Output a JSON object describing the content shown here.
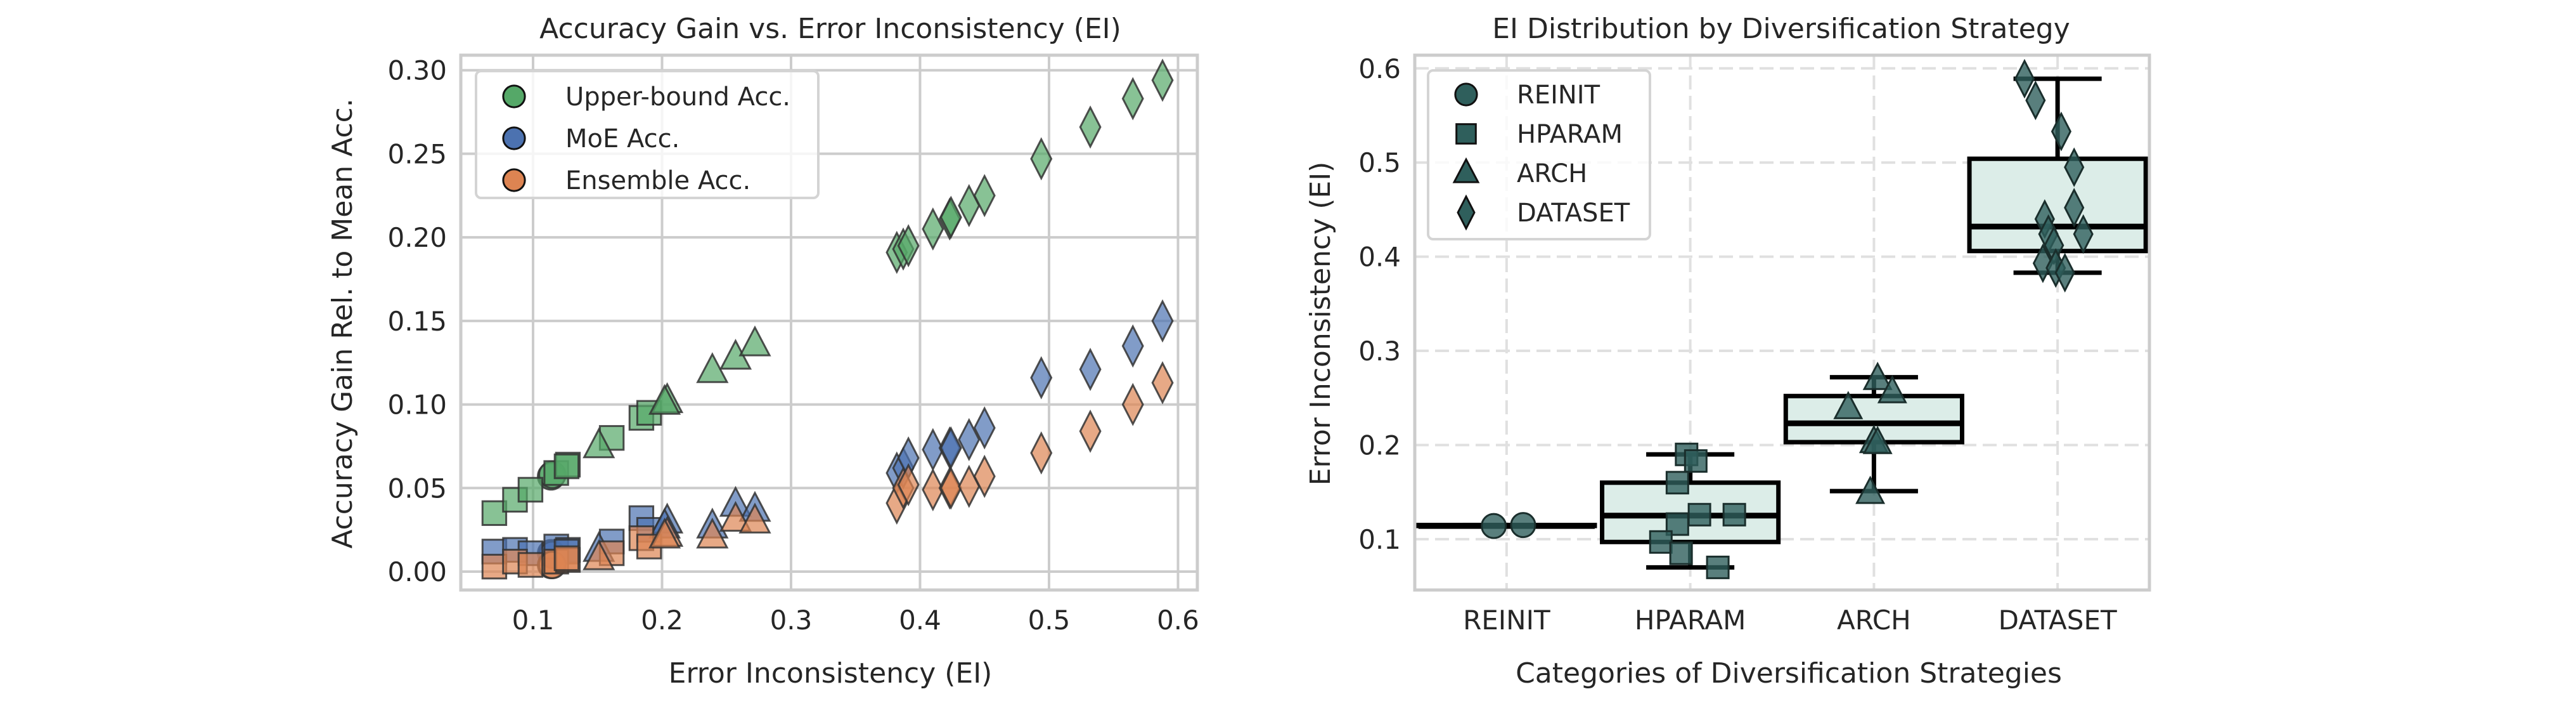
{
  "figure": {
    "background": "#ffffff"
  },
  "chart_data": [
    {
      "type": "scatter",
      "title": "Accuracy Gain vs. Error Inconsistency (EI)",
      "xlabel": "Error Inconsistency (EI)",
      "ylabel": "Accuracy Gain Rel. to Mean Acc.",
      "xlim": [
        0.044,
        0.615
      ],
      "ylim": [
        -0.011,
        0.309
      ],
      "xticks": [
        0.1,
        0.2,
        0.3,
        0.4,
        0.5,
        0.6
      ],
      "xtick_labels": [
        "0.1",
        "0.2",
        "0.3",
        "0.4",
        "0.5",
        "0.6"
      ],
      "yticks": [
        0.0,
        0.05,
        0.1,
        0.15,
        0.2,
        0.25,
        0.3
      ],
      "ytick_labels": [
        "0.00",
        "0.05",
        "0.10",
        "0.15",
        "0.20",
        "0.25",
        "0.30"
      ],
      "grid": true,
      "legend_position": "top-left",
      "legend": [
        {
          "label": "Upper-bound Acc.",
          "color": "#55a868"
        },
        {
          "label": "MoE Acc.",
          "color": "#4c72b0"
        },
        {
          "label": "Ensemble Acc.",
          "color": "#dd8452"
        }
      ],
      "marker_by_strategy": {
        "REINIT": "circle",
        "HPARAM": "square",
        "ARCH": "triangle",
        "DATASET": "diamond"
      },
      "points": [
        {
          "strategy": "REINIT",
          "ei": 0.114,
          "upper": 0.057,
          "moe": 0.011,
          "ens": 0.004
        },
        {
          "strategy": "REINIT",
          "ei": 0.115,
          "upper": 0.058,
          "moe": 0.01,
          "ens": 0.004
        },
        {
          "strategy": "HPARAM",
          "ei": 0.07,
          "upper": 0.035,
          "moe": 0.012,
          "ens": 0.003
        },
        {
          "strategy": "HPARAM",
          "ei": 0.086,
          "upper": 0.043,
          "moe": 0.013,
          "ens": 0.006
        },
        {
          "strategy": "HPARAM",
          "ei": 0.098,
          "upper": 0.049,
          "moe": 0.011,
          "ens": 0.004
        },
        {
          "strategy": "HPARAM",
          "ei": 0.118,
          "upper": 0.059,
          "moe": 0.015,
          "ens": 0.006
        },
        {
          "strategy": "HPARAM",
          "ei": 0.127,
          "upper": 0.064,
          "moe": 0.013,
          "ens": 0.007
        },
        {
          "strategy": "HPARAM",
          "ei": 0.161,
          "upper": 0.08,
          "moe": 0.018,
          "ens": 0.011
        },
        {
          "strategy": "HPARAM",
          "ei": 0.184,
          "upper": 0.092,
          "moe": 0.032,
          "ens": 0.02
        },
        {
          "strategy": "HPARAM",
          "ei": 0.19,
          "upper": 0.095,
          "moe": 0.025,
          "ens": 0.015
        },
        {
          "strategy": "HPARAM",
          "ei": 0.126,
          "upper": 0.063,
          "moe": 0.012,
          "ens": 0.008
        },
        {
          "strategy": "ARCH",
          "ei": 0.151,
          "upper": 0.075,
          "moe": 0.013,
          "ens": 0.008
        },
        {
          "strategy": "ARCH",
          "ei": 0.204,
          "upper": 0.102,
          "moe": 0.03,
          "ens": 0.022
        },
        {
          "strategy": "ARCH",
          "ei": 0.202,
          "upper": 0.101,
          "moe": 0.027,
          "ens": 0.021
        },
        {
          "strategy": "ARCH",
          "ei": 0.239,
          "upper": 0.12,
          "moe": 0.027,
          "ens": 0.021
        },
        {
          "strategy": "ARCH",
          "ei": 0.257,
          "upper": 0.128,
          "moe": 0.04,
          "ens": 0.031
        },
        {
          "strategy": "ARCH",
          "ei": 0.272,
          "upper": 0.136,
          "moe": 0.037,
          "ens": 0.03
        },
        {
          "strategy": "DATASET",
          "ei": 0.382,
          "upper": 0.191,
          "moe": 0.059,
          "ens": 0.041
        },
        {
          "strategy": "DATASET",
          "ei": 0.387,
          "upper": 0.193,
          "moe": 0.062,
          "ens": 0.05
        },
        {
          "strategy": "DATASET",
          "ei": 0.391,
          "upper": 0.195,
          "moe": 0.068,
          "ens": 0.052
        },
        {
          "strategy": "DATASET",
          "ei": 0.41,
          "upper": 0.205,
          "moe": 0.073,
          "ens": 0.049
        },
        {
          "strategy": "DATASET",
          "ei": 0.423,
          "upper": 0.211,
          "moe": 0.074,
          "ens": 0.05
        },
        {
          "strategy": "DATASET",
          "ei": 0.424,
          "upper": 0.212,
          "moe": 0.074,
          "ens": 0.05
        },
        {
          "strategy": "DATASET",
          "ei": 0.438,
          "upper": 0.219,
          "moe": 0.079,
          "ens": 0.051
        },
        {
          "strategy": "DATASET",
          "ei": 0.45,
          "upper": 0.225,
          "moe": 0.086,
          "ens": 0.057
        },
        {
          "strategy": "DATASET",
          "ei": 0.494,
          "upper": 0.247,
          "moe": 0.116,
          "ens": 0.071
        },
        {
          "strategy": "DATASET",
          "ei": 0.532,
          "upper": 0.266,
          "moe": 0.121,
          "ens": 0.084
        },
        {
          "strategy": "DATASET",
          "ei": 0.565,
          "upper": 0.283,
          "moe": 0.135,
          "ens": 0.1
        },
        {
          "strategy": "DATASET",
          "ei": 0.588,
          "upper": 0.294,
          "moe": 0.15,
          "ens": 0.113
        }
      ]
    },
    {
      "type": "box",
      "title": "EI Distribution by Diversification Strategy",
      "xlabel": "Categories of Diversification Strategies",
      "ylabel": "Error Inconsistency (EI)",
      "categories": [
        "REINIT",
        "HPARAM",
        "ARCH",
        "DATASET"
      ],
      "ylim": [
        0.046,
        0.614
      ],
      "yticks": [
        0.1,
        0.2,
        0.3,
        0.4,
        0.5,
        0.6
      ],
      "ytick_labels": [
        "0.1",
        "0.2",
        "0.3",
        "0.4",
        "0.5",
        "0.6"
      ],
      "grid": true,
      "grid_style": "dashed",
      "legend_position": "top-left",
      "marker_color": "#2f5f5c",
      "box_fill": "#dcede8",
      "legend": [
        {
          "label": "REINIT",
          "marker": "circle"
        },
        {
          "label": "HPARAM",
          "marker": "square"
        },
        {
          "label": "ARCH",
          "marker": "triangle"
        },
        {
          "label": "DATASET",
          "marker": "diamond"
        }
      ],
      "boxes": [
        {
          "category": "REINIT",
          "whisker_low": 0.114,
          "q1": 0.114,
          "median": 0.114,
          "q3": 0.115,
          "whisker_high": 0.115,
          "points": [
            {
              "y": 0.114,
              "jitter": -0.07
            },
            {
              "y": 0.115,
              "jitter": 0.09
            }
          ]
        },
        {
          "category": "HPARAM",
          "whisker_low": 0.07,
          "q1": 0.097,
          "median": 0.125,
          "q3": 0.16,
          "whisker_high": 0.19,
          "points": [
            {
              "y": 0.19,
              "jitter": -0.02
            },
            {
              "y": 0.183,
              "jitter": 0.03
            },
            {
              "y": 0.16,
              "jitter": -0.07
            },
            {
              "y": 0.126,
              "jitter": 0.05
            },
            {
              "y": 0.126,
              "jitter": 0.24
            },
            {
              "y": 0.116,
              "jitter": -0.07
            },
            {
              "y": 0.097,
              "jitter": -0.16
            },
            {
              "y": 0.085,
              "jitter": -0.05
            },
            {
              "y": 0.07,
              "jitter": 0.15
            }
          ]
        },
        {
          "category": "ARCH",
          "whisker_low": 0.151,
          "q1": 0.203,
          "median": 0.223,
          "q3": 0.252,
          "whisker_high": 0.272,
          "points": [
            {
              "y": 0.27,
              "jitter": 0.02
            },
            {
              "y": 0.256,
              "jitter": 0.1
            },
            {
              "y": 0.239,
              "jitter": -0.14
            },
            {
              "y": 0.203,
              "jitter": 0.0
            },
            {
              "y": 0.202,
              "jitter": 0.02
            },
            {
              "y": 0.149,
              "jitter": -0.02
            }
          ]
        },
        {
          "category": "DATASET",
          "whisker_low": 0.383,
          "q1": 0.406,
          "median": 0.432,
          "q3": 0.504,
          "whisker_high": 0.589,
          "points": [
            {
              "y": 0.589,
              "jitter": -0.18
            },
            {
              "y": 0.566,
              "jitter": -0.12
            },
            {
              "y": 0.533,
              "jitter": 0.02
            },
            {
              "y": 0.495,
              "jitter": 0.09
            },
            {
              "y": 0.452,
              "jitter": 0.09
            },
            {
              "y": 0.44,
              "jitter": -0.07
            },
            {
              "y": 0.424,
              "jitter": 0.14
            },
            {
              "y": 0.424,
              "jitter": -0.05
            },
            {
              "y": 0.412,
              "jitter": -0.02
            },
            {
              "y": 0.393,
              "jitter": -0.08
            },
            {
              "y": 0.388,
              "jitter": -0.01
            },
            {
              "y": 0.383,
              "jitter": 0.04
            }
          ]
        }
      ]
    }
  ]
}
